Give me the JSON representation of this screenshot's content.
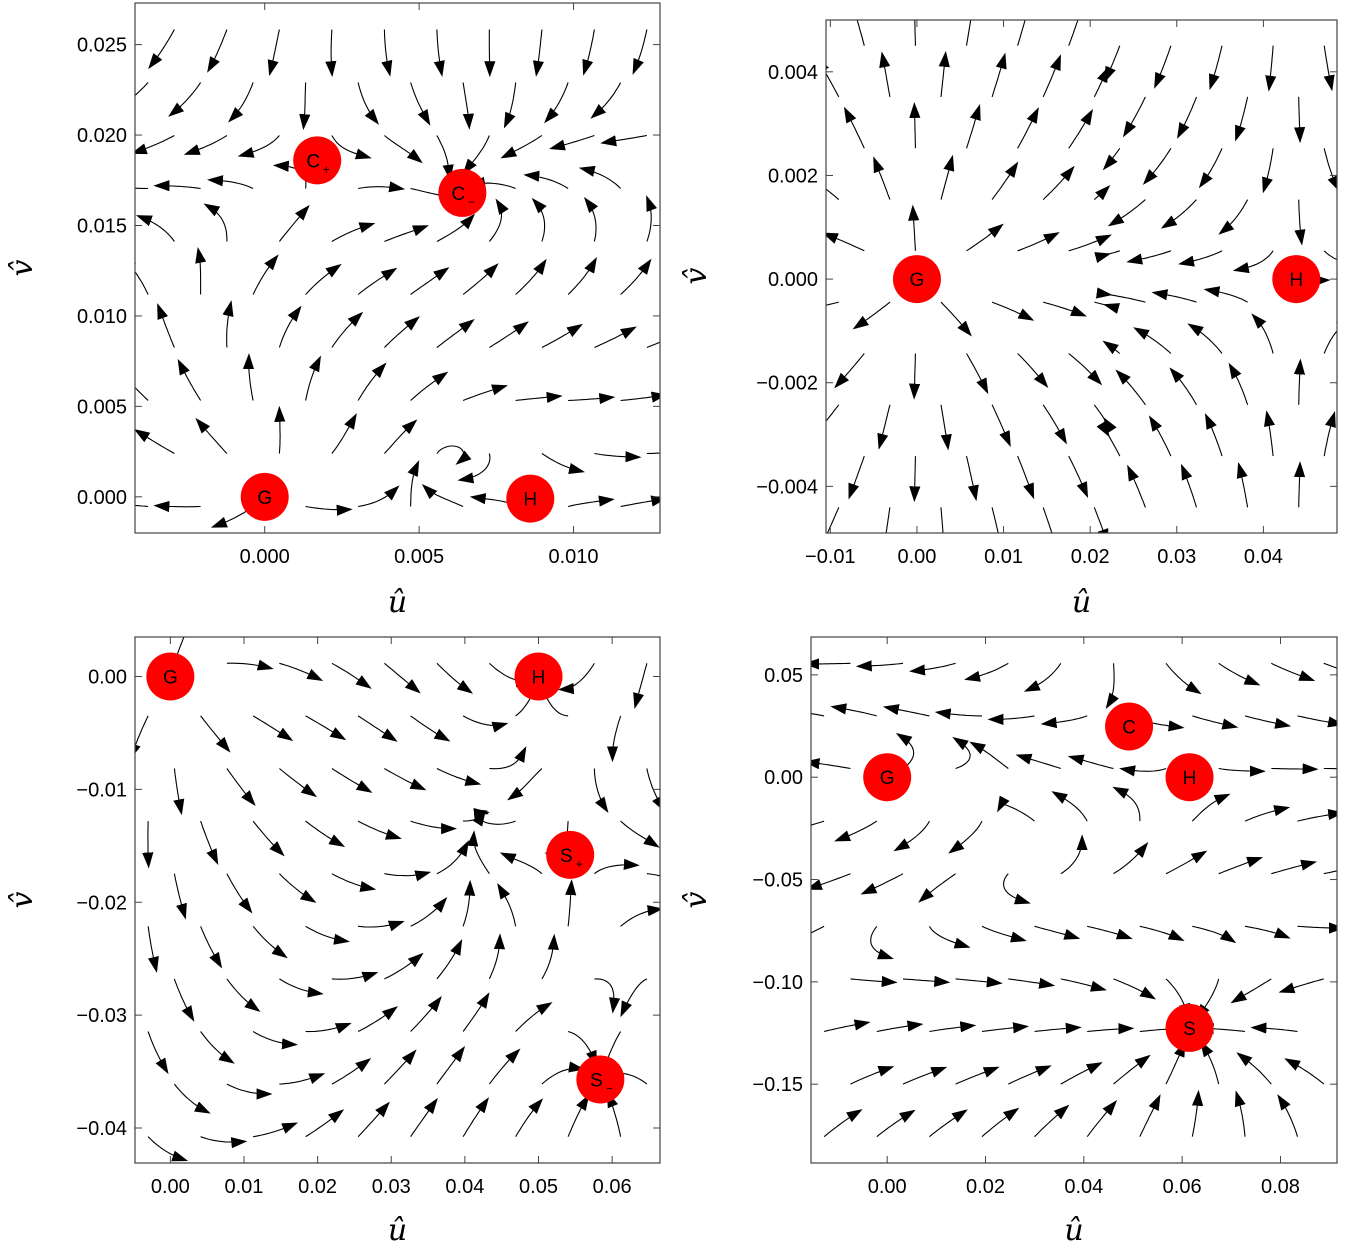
{
  "chart_data": [
    {
      "type": "streamplot",
      "xlabel": "û",
      "ylabel": "v̂",
      "xlim": [
        -0.0042,
        0.0128
      ],
      "ylim": [
        -0.002,
        0.0273
      ],
      "xticks": [
        0.0,
        0.005,
        0.01
      ],
      "xtick_labels": [
        "0.000",
        "0.005",
        "0.010"
      ],
      "yticks": [
        0.0,
        0.005,
        0.01,
        0.015,
        0.02,
        0.025
      ],
      "ytick_labels": [
        "0.000",
        "0.005",
        "0.010",
        "0.015",
        "0.020",
        "0.025"
      ],
      "marker_color": "#ff0000",
      "points": [
        {
          "label": "G",
          "sub": "",
          "x": 0.0,
          "y": 0.0
        },
        {
          "label": "H",
          "sub": "",
          "x": 0.0086,
          "y": -0.0001
        },
        {
          "label": "C",
          "sub": "+",
          "x": 0.0017,
          "y": 0.0186
        },
        {
          "label": "C",
          "sub": "−",
          "x": 0.0064,
          "y": 0.0168
        }
      ]
    },
    {
      "type": "streamplot",
      "xlabel": "û",
      "ylabel": "v̂",
      "xlim": [
        -0.0105,
        0.0485
      ],
      "ylim": [
        -0.0049,
        0.005
      ],
      "xticks": [
        -0.01,
        0.0,
        0.01,
        0.02,
        0.03,
        0.04
      ],
      "xtick_labels": [
        "−0.01",
        "0.00",
        "0.01",
        "0.02",
        "0.03",
        "0.04"
      ],
      "yticks": [
        -0.004,
        -0.002,
        0.0,
        0.002,
        0.004
      ],
      "ytick_labels": [
        "−0.004",
        "−0.002",
        "0.000",
        "0.002",
        "0.004"
      ],
      "marker_color": "#ff0000",
      "points": [
        {
          "label": "G",
          "sub": "",
          "x": 0.0,
          "y": 0.0
        },
        {
          "label": "H",
          "sub": "",
          "x": 0.0438,
          "y": 0.0
        }
      ]
    },
    {
      "type": "streamplot",
      "xlabel": "û",
      "ylabel": "v̂",
      "xlim": [
        -0.0048,
        0.0665
      ],
      "ylim": [
        -0.0431,
        0.0035
      ],
      "xticks": [
        0.0,
        0.01,
        0.02,
        0.03,
        0.04,
        0.05,
        0.06
      ],
      "xtick_labels": [
        "0.00",
        "0.01",
        "0.02",
        "0.03",
        "0.04",
        "0.05",
        "0.06"
      ],
      "yticks": [
        -0.04,
        -0.03,
        -0.02,
        -0.01,
        0.0
      ],
      "ytick_labels": [
        "−0.04",
        "−0.03",
        "−0.02",
        "−0.01",
        "0.00"
      ],
      "marker_color": "#ff0000",
      "points": [
        {
          "label": "G",
          "sub": "",
          "x": 0.0,
          "y": 0.0
        },
        {
          "label": "H",
          "sub": "",
          "x": 0.05,
          "y": 0.0
        },
        {
          "label": "S",
          "sub": "+",
          "x": 0.0543,
          "y": -0.0158
        },
        {
          "label": "S",
          "sub": "−",
          "x": 0.0584,
          "y": -0.0357
        }
      ]
    },
    {
      "type": "streamplot",
      "xlabel": "û",
      "ylabel": "v̂",
      "xlim": [
        -0.0155,
        0.0915
      ],
      "ylim": [
        -0.1885,
        0.0685
      ],
      "xticks": [
        0.0,
        0.02,
        0.04,
        0.06,
        0.08
      ],
      "xtick_labels": [
        "0.00",
        "0.02",
        "0.04",
        "0.06",
        "0.08"
      ],
      "yticks": [
        -0.15,
        -0.1,
        -0.05,
        0.0,
        0.05
      ],
      "ytick_labels": [
        "−0.15",
        "−0.10",
        "−0.05",
        "0.00",
        "0.05"
      ],
      "marker_color": "#ff0000",
      "points": [
        {
          "label": "G",
          "sub": "",
          "x": 0.0,
          "y": 0.0
        },
        {
          "label": "H",
          "sub": "",
          "x": 0.0615,
          "y": 0.0
        },
        {
          "label": "C",
          "sub": "",
          "x": 0.0492,
          "y": 0.0248
        },
        {
          "label": "S",
          "sub": "",
          "x": 0.0615,
          "y": -0.1225
        }
      ]
    }
  ]
}
